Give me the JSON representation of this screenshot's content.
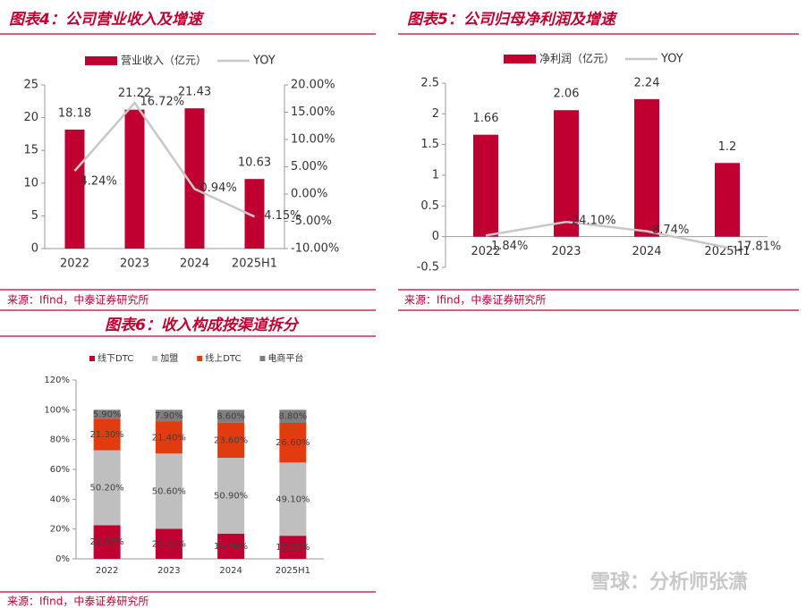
{
  "chart_data": [
    {
      "type": "bar_line",
      "title": "图表4：公司营业收入及增速",
      "source": "来源：Ifind，中泰证券研究所",
      "categories": [
        "2022",
        "2023",
        "2024",
        "2025H1"
      ],
      "series": [
        {
          "name": "营业收入（亿元）",
          "type": "bar",
          "color": "#c00030",
          "values": [
            18.18,
            21.22,
            21.43,
            10.63
          ]
        },
        {
          "name": "YOY",
          "type": "line",
          "axis": "y2",
          "color": "#c8c8c8",
          "values": [
            4.24,
            16.72,
            0.94,
            -4.15
          ],
          "value_labels": [
            "4.24%",
            "16.72%",
            "0.94%",
            "-4.15%"
          ]
        }
      ],
      "ylim": [
        0,
        25
      ],
      "yticks": [
        0,
        5,
        10,
        15,
        20,
        25
      ],
      "y2lim": [
        -10,
        20
      ],
      "y2ticks": [
        {
          "value": -10,
          "label": "-10.00%"
        },
        {
          "value": -5,
          "label": "-5.00%"
        },
        {
          "value": 0,
          "label": "0.00%"
        },
        {
          "value": 5,
          "label": "5.00%"
        },
        {
          "value": 10,
          "label": "10.00%"
        },
        {
          "value": 15,
          "label": "15.00%"
        },
        {
          "value": 20,
          "label": "20.00%"
        }
      ],
      "grid": false
    },
    {
      "type": "bar_line",
      "title": "图表5：公司归母净利润及增速",
      "source": "来源：Ifind，中泰证券研究所",
      "categories": [
        "2022",
        "2023",
        "2024",
        "2025H1"
      ],
      "series": [
        {
          "name": "净利润（亿元）",
          "type": "bar",
          "color": "#c00030",
          "values": [
            1.66,
            2.06,
            2.24,
            1.2
          ]
        },
        {
          "name": "YOY",
          "type": "line",
          "color": "#c8c8c8",
          "values": [
            0.0184,
            0.241,
            0.0874,
            -0.1781
          ],
          "value_labels": [
            "1.84%",
            "24.10%",
            "8.74%",
            "-17.81%"
          ]
        }
      ],
      "ylim": [
        -0.5,
        2.5
      ],
      "yticks": [
        -0.5,
        0,
        0.5,
        1,
        1.5,
        2,
        2.5
      ],
      "grid": false
    },
    {
      "type": "stacked_bar",
      "title": "图表6：收入构成按渠道拆分",
      "source": "来源：Ifind，中泰证券研究所",
      "categories": [
        "2022",
        "2023",
        "2024",
        "2025H1"
      ],
      "series": [
        {
          "name": "线下DTC",
          "color": "#c00030",
          "values": [
            22.6,
            20.1,
            16.9,
            15.5
          ],
          "value_labels": [
            "22.60%",
            "20.10%",
            "16.90%",
            "15.50%"
          ]
        },
        {
          "name": "加盟",
          "color": "#bfbfbf",
          "values": [
            50.2,
            50.6,
            50.9,
            49.1
          ],
          "value_labels": [
            "50.20%",
            "50.60%",
            "50.90%",
            "49.10%"
          ]
        },
        {
          "name": "线上DTC",
          "color": "#e03c10",
          "values": [
            21.3,
            21.4,
            23.6,
            26.6
          ],
          "value_labels": [
            "21.30%",
            "21.40%",
            "23.60%",
            "26.60%"
          ]
        },
        {
          "name": "电商平台",
          "color": "#7f7f7f",
          "values": [
            5.9,
            7.9,
            8.6,
            8.8
          ],
          "value_labels": [
            "5.90%",
            "7.90%",
            "8.60%",
            "8.80%"
          ]
        }
      ],
      "ylim": [
        0,
        120
      ],
      "yticks": [
        {
          "value": 0,
          "label": "0%"
        },
        {
          "value": 20,
          "label": "20%"
        },
        {
          "value": 40,
          "label": "40%"
        },
        {
          "value": 60,
          "label": "60%"
        },
        {
          "value": 80,
          "label": "80%"
        },
        {
          "value": 100,
          "label": "100%"
        },
        {
          "value": 120,
          "label": "120%"
        }
      ],
      "grid": false
    }
  ],
  "watermark": "雪球：分析师张潇"
}
